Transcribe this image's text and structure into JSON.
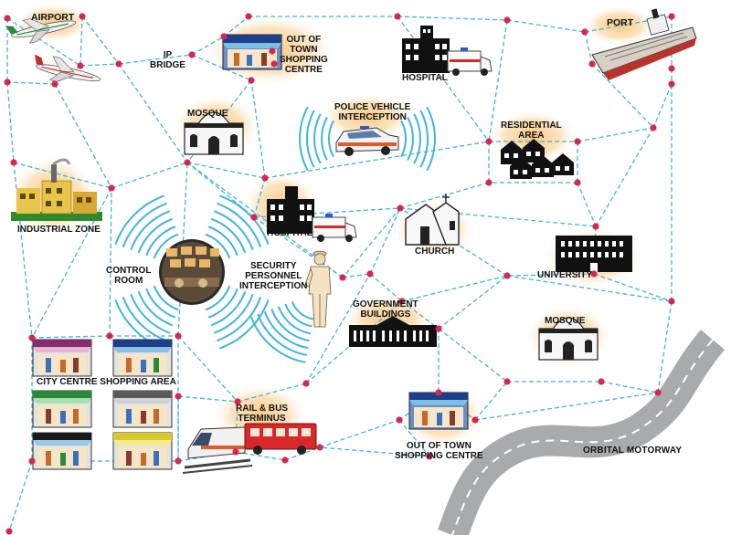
{
  "labels": {
    "airport": "AIRPORT",
    "ip_bridge": "IP\nBRIDGE",
    "oot_shop_top": "OUT OF\nTOWN\nSHOPPING\nCENTRE",
    "hospital_top": "HOSPITAL",
    "port": "PORT",
    "mosque_top": "MOSQUE",
    "police": "POLICE VEHICLE\nINTERCEPTION",
    "residential": "RESIDENTIAL\nAREA",
    "industrial": "INDUSTRIAL ZONE",
    "hospital_mid": "HOSPITAL",
    "church": "CHURCH",
    "university": "UNIVERSITY",
    "control_room": "CONTROL\nROOM",
    "security": "SECURITY\nPERSONNEL\nINTERCEPTION",
    "government": "GOVERNMENT\nBUILDINGS",
    "mosque_bottom": "MOSQUE",
    "city_centre": "CITY CENTRE SHOPPING AREA",
    "rail_bus": "RAIL & BUS\nTERMINUS",
    "oot_shop_bottom": "OUT OF TOWN\nSHOPPING CENTRE",
    "orbital": "ORBITAL MOTORWAY"
  },
  "colors": {
    "mesh_link": "#3fb5de",
    "node": "#d6284f",
    "glow": "#f9c982",
    "road": "#a9aaac",
    "road_dash": "#ffffff",
    "signal_wave": "#3fb5de"
  },
  "icons": [
    "plane-icon",
    "store-icon",
    "hospital-icon",
    "ambulance-icon",
    "ship-icon",
    "mosque-icon",
    "police-car-icon",
    "houses-icon",
    "factory-icon",
    "church-icon",
    "university-icon",
    "control-room-icon",
    "security-guard-icon",
    "government-building-icon",
    "train-icon",
    "bus-icon",
    "road-icon"
  ]
}
